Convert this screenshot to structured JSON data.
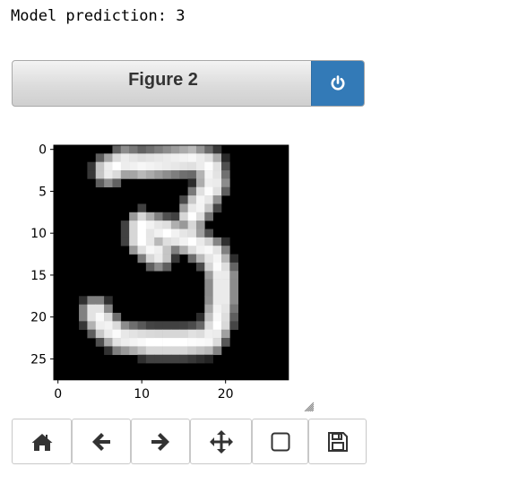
{
  "output": {
    "prediction_text": "Model prediction: 3"
  },
  "figure": {
    "title": "Figure 2",
    "close_icon": "power-icon",
    "accent_color": "#337ab7"
  },
  "chart_data": {
    "type": "heatmap",
    "colormap": "gray",
    "rows": 28,
    "cols": 28,
    "x_ticks": [
      "0",
      "10",
      "20"
    ],
    "y_ticks": [
      "0",
      "5",
      "10",
      "15",
      "20",
      "25"
    ],
    "xlim": [
      -0.5,
      27.5
    ],
    "ylim": [
      27.5,
      -0.5
    ]
  },
  "toolbar": {
    "buttons": [
      {
        "name": "home",
        "icon": "home-icon"
      },
      {
        "name": "back",
        "icon": "arrow-left-icon"
      },
      {
        "name": "forward",
        "icon": "arrow-right-icon"
      },
      {
        "name": "pan",
        "icon": "move-icon"
      },
      {
        "name": "zoom",
        "icon": "square-icon"
      },
      {
        "name": "download",
        "icon": "save-icon"
      }
    ]
  }
}
